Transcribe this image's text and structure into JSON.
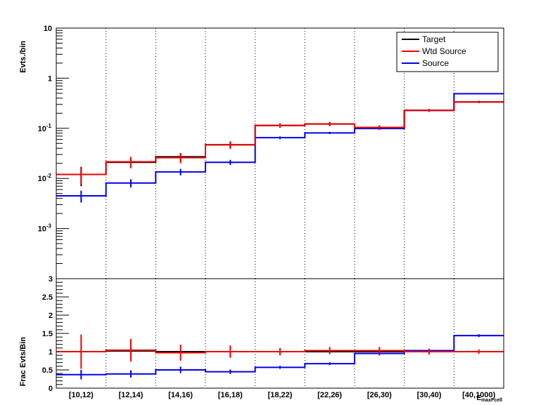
{
  "colors": {
    "target": "#000000",
    "wtd_source": "#ee0000",
    "source": "#0000ee",
    "grid": "#000000",
    "frame": "#000000"
  },
  "chart_data": [
    {
      "type": "line",
      "style": "step-histogram",
      "yscale": "log",
      "ylabel": "Evts./bin",
      "ylim": [
        0.0001,
        10
      ],
      "yticks": [
        {
          "value": 10,
          "mant": "10",
          "exp": ""
        },
        {
          "value": 1,
          "mant": "1",
          "exp": ""
        },
        {
          "value": 0.1,
          "mant": "10",
          "exp": "-1"
        },
        {
          "value": 0.01,
          "mant": "10",
          "exp": "-2"
        },
        {
          "value": 0.001,
          "mant": "10",
          "exp": "-3"
        }
      ],
      "categories": [
        "[10,12)",
        "[12,14)",
        "[14,16)",
        "[16,18)",
        "[18,22)",
        "[22,26)",
        "[26,30)",
        "[30,40)",
        "[40,1000)"
      ],
      "grid": "vertical dotted",
      "legend": {
        "position": "top-right",
        "entries": [
          {
            "label": "Target",
            "series": "target"
          },
          {
            "label": "Wtd Source",
            "series": "wtd_source"
          },
          {
            "label": "Source",
            "series": "source"
          }
        ]
      },
      "series": [
        {
          "name": "Target",
          "key": "target",
          "color": "#000000",
          "values": [
            0.012,
            0.021,
            0.027,
            0.047,
            0.114,
            0.122,
            0.104,
            0.228,
            0.336
          ],
          "errors": [
            0.005,
            0.005,
            0.005,
            0.007,
            0.011,
            0.011,
            0.01,
            0.014,
            0.017
          ]
        },
        {
          "name": "Wtd Source",
          "key": "wtd_source",
          "color": "#ee0000",
          "values": [
            0.012,
            0.0215,
            0.026,
            0.047,
            0.114,
            0.122,
            0.104,
            0.228,
            0.336
          ],
          "errors": [
            0.0045,
            0.0055,
            0.006,
            0.008,
            0.012,
            0.012,
            0.011,
            0.016,
            0.018
          ]
        },
        {
          "name": "Source",
          "key": "source",
          "color": "#0000ee",
          "values": [
            0.0045,
            0.0081,
            0.0135,
            0.021,
            0.065,
            0.081,
            0.099,
            0.228,
            0.49
          ],
          "errors": [
            0.0012,
            0.0015,
            0.002,
            0.0025,
            0.004,
            0.004,
            0.005,
            0.007,
            0.009
          ]
        }
      ]
    },
    {
      "type": "line",
      "style": "step-histogram",
      "ylabel": "Frac Evts/Bin",
      "xlabel": "E_maxFcell",
      "ylim": [
        0,
        3
      ],
      "yticks": [
        "0",
        "0.5",
        "1",
        "1.5",
        "2",
        "2.5",
        "3"
      ],
      "categories": [
        "[10,12)",
        "[12,14)",
        "[14,16)",
        "[16,18)",
        "[18,22)",
        "[22,26)",
        "[26,30)",
        "[30,40)",
        "[40,1000)"
      ],
      "series": [
        {
          "name": "Target",
          "key": "target",
          "color": "#000000",
          "values": [
            1.0,
            1.02,
            1.0,
            1.0,
            1.0,
            1.0,
            1.0,
            1.0,
            1.0
          ],
          "errors": [
            0,
            0,
            0,
            0,
            0,
            0,
            0,
            0,
            0
          ]
        },
        {
          "name": "Wtd Source",
          "key": "wtd_source",
          "color": "#ee0000",
          "values": [
            1.0,
            1.04,
            0.97,
            1.0,
            1.0,
            1.03,
            1.03,
            1.0,
            1.0
          ],
          "errors": [
            0.47,
            0.31,
            0.22,
            0.17,
            0.1,
            0.1,
            0.1,
            0.08,
            0.06
          ]
        },
        {
          "name": "Source",
          "key": "source",
          "color": "#0000ee",
          "values": [
            0.37,
            0.39,
            0.5,
            0.45,
            0.57,
            0.67,
            0.95,
            1.03,
            1.44
          ],
          "errors": [
            0.13,
            0.1,
            0.09,
            0.06,
            0.04,
            0.04,
            0.05,
            0.04,
            0.04
          ]
        }
      ]
    }
  ]
}
